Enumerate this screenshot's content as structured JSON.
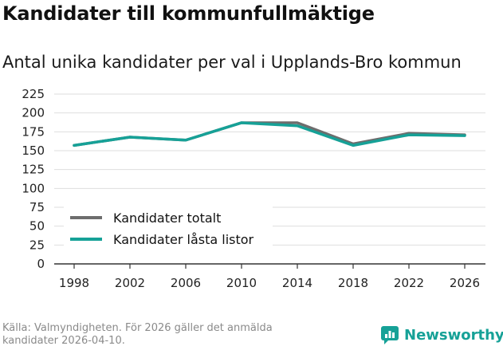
{
  "header": {
    "title": "Kandidater till kommunfullmäktige",
    "subtitle": "Antal unika kandidater per val i Upplands-Bro kommun"
  },
  "footer": {
    "source_line1": "Källa: Valmyndigheten. För 2026 gäller det anmälda",
    "source_line2": "kandidater 2026-04-10.",
    "brand": "Newsworthy"
  },
  "colors": {
    "total": "#6d6d6d",
    "locked": "#16a197",
    "grid": "#dedede",
    "axis": "#333333"
  },
  "chart_data": {
    "type": "line",
    "title": "Antal unika kandidater per val i Upplands-Bro kommun",
    "xlabel": "",
    "ylabel": "",
    "categories": [
      "1998",
      "2002",
      "2006",
      "2010",
      "2014",
      "2018",
      "2022",
      "2026"
    ],
    "yticks": [
      0,
      25,
      50,
      75,
      100,
      125,
      150,
      175,
      200,
      225
    ],
    "ylim": [
      0,
      225
    ],
    "legend_position": "bottom-left",
    "series": [
      {
        "name": "Kandidater totalt",
        "color": "#6d6d6d",
        "values": [
          157,
          168,
          164,
          187,
          187,
          159,
          173,
          171
        ]
      },
      {
        "name": "Kandidater låsta listor",
        "color": "#16a197",
        "values": [
          157,
          168,
          164,
          187,
          183,
          157,
          171,
          170
        ]
      }
    ]
  }
}
